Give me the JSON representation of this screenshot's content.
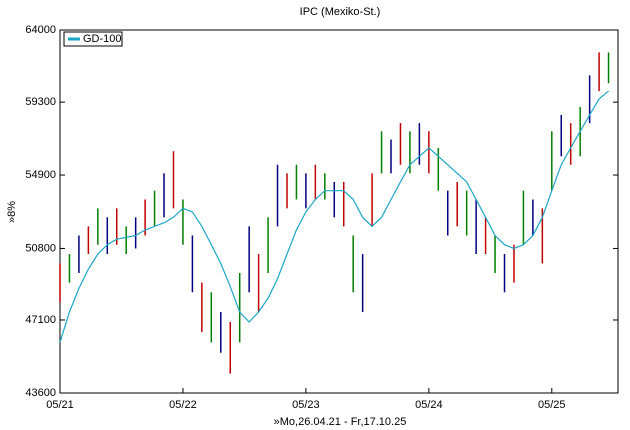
{
  "chart_data": {
    "type": "ohlc",
    "title": "IPC (Mexiko-St.)",
    "x_label": "»Mo,26.04.21 - Fr,17.10.25",
    "y_label": "»8%",
    "log_scale": true,
    "xlim": [
      0,
      236
    ],
    "ylim": [
      43600,
      64000
    ],
    "yticks": [
      43600,
      47100,
      50800,
      54900,
      59300,
      64000
    ],
    "xticks": [
      {
        "value": 0,
        "label": "05/21"
      },
      {
        "value": 52,
        "label": "05/22"
      },
      {
        "value": 104,
        "label": "05/23"
      },
      {
        "value": 156,
        "label": "05/24"
      },
      {
        "value": 208,
        "label": "05/25"
      }
    ],
    "bar_colors": [
      "#c00000",
      "#008000",
      "#000080"
    ],
    "x": [
      0,
      4,
      8,
      12,
      16,
      20,
      24,
      28,
      32,
      36,
      40,
      44,
      48,
      52,
      56,
      60,
      64,
      68,
      72,
      76,
      80,
      84,
      88,
      92,
      96,
      100,
      104,
      108,
      112,
      116,
      120,
      124,
      128,
      132,
      136,
      140,
      144,
      148,
      152,
      156,
      160,
      164,
      168,
      172,
      176,
      180,
      184,
      188,
      192,
      196,
      200,
      204,
      208,
      212,
      216,
      220,
      224,
      228,
      232
    ],
    "high": [
      50000,
      50500,
      51500,
      52000,
      53000,
      52500,
      53000,
      52000,
      52500,
      53500,
      54000,
      55000,
      56300,
      53500,
      51500,
      49000,
      48500,
      47500,
      47000,
      49500,
      52000,
      50500,
      52500,
      55500,
      55000,
      55500,
      55000,
      55500,
      55000,
      54500,
      54500,
      51500,
      50500,
      55000,
      57500,
      57000,
      58000,
      57500,
      58000,
      57500,
      56500,
      54000,
      54500,
      54000,
      53500,
      52500,
      51500,
      50500,
      51000,
      54000,
      53500,
      53000,
      57500,
      58500,
      58000,
      59000,
      61000,
      62500,
      62500
    ],
    "low": [
      48000,
      49000,
      49500,
      50500,
      51000,
      50500,
      51000,
      50500,
      50800,
      51500,
      52000,
      52500,
      53000,
      51000,
      48500,
      46500,
      46000,
      45500,
      44500,
      46000,
      48500,
      47500,
      49500,
      52000,
      53000,
      53500,
      53000,
      53500,
      53500,
      52500,
      52000,
      48500,
      47500,
      52000,
      55000,
      55000,
      55500,
      55000,
      55500,
      55000,
      54000,
      51500,
      52000,
      51500,
      50500,
      50500,
      49500,
      48500,
      49000,
      51000,
      51500,
      50000,
      54000,
      56000,
      55500,
      56000,
      58000,
      60000,
      60500
    ],
    "series": [
      {
        "name": "GD-100",
        "color": "#1aa6c8",
        "values": [
          46000,
          47500,
          48700,
          49700,
          50500,
          51000,
          51300,
          51400,
          51500,
          51800,
          52000,
          52200,
          52500,
          53000,
          52800,
          52000,
          51000,
          50000,
          48800,
          47500,
          47000,
          47500,
          48200,
          49200,
          50500,
          51800,
          52800,
          53500,
          54000,
          54000,
          54000,
          53500,
          52500,
          52000,
          52500,
          53500,
          54500,
          55500,
          56000,
          56500,
          56000,
          55500,
          55000,
          54500,
          53500,
          52500,
          51500,
          51000,
          50800,
          51000,
          51500,
          52500,
          54000,
          55500,
          56500,
          57500,
          58500,
          59500,
          60000
        ]
      }
    ]
  }
}
